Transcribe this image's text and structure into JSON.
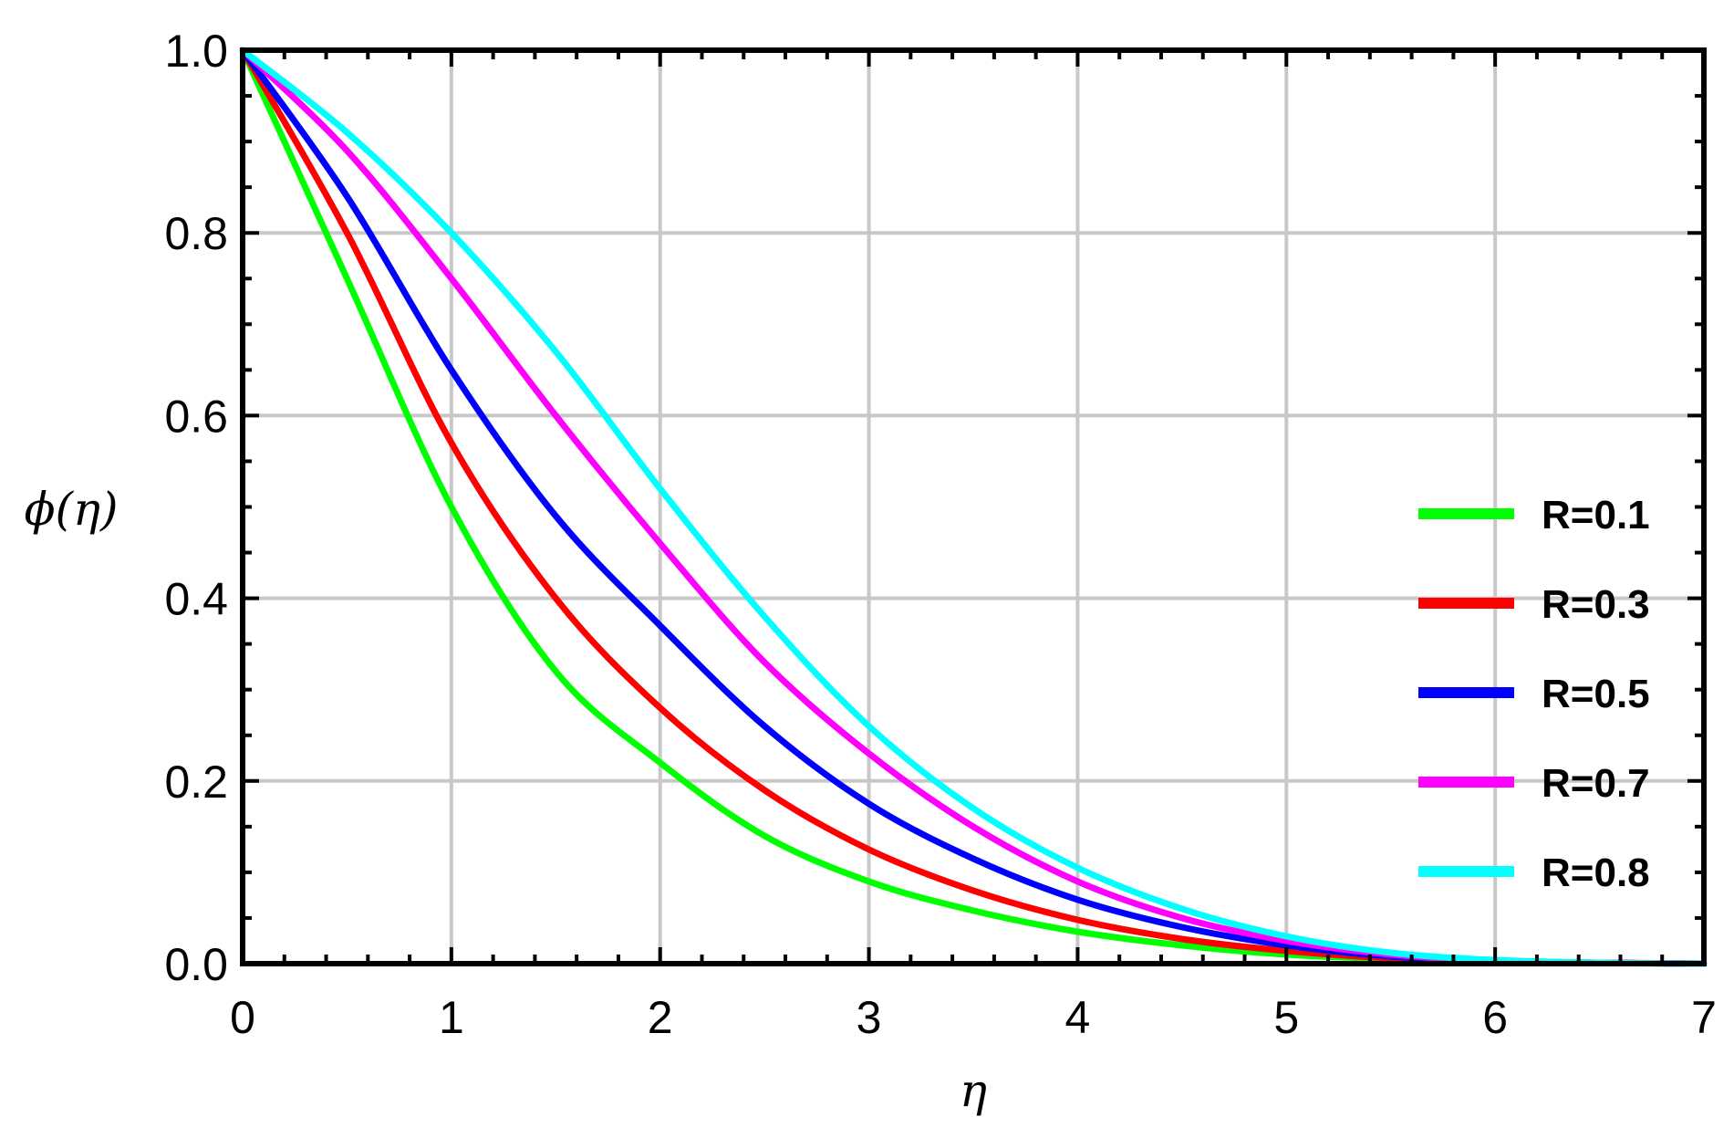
{
  "chart_data": {
    "type": "line",
    "title": "",
    "xlabel": "η",
    "ylabel": "ϕ(η)",
    "xlim": [
      0,
      7
    ],
    "ylim": [
      0,
      1
    ],
    "xticks": [
      0,
      1,
      2,
      3,
      4,
      5,
      6,
      7
    ],
    "xtick_labels": [
      "0",
      "1",
      "2",
      "3",
      "4",
      "5",
      "6",
      "7"
    ],
    "yticks": [
      0,
      0.2,
      0.4,
      0.6,
      0.8,
      1.0
    ],
    "ytick_labels": [
      "0.0",
      "0.2",
      "0.4",
      "0.6",
      "0.8",
      "1.0"
    ],
    "grid": true,
    "legend_position": "right",
    "x": [
      0,
      0.5,
      1,
      1.5,
      2,
      2.5,
      3,
      3.5,
      4,
      4.5,
      5,
      5.5,
      6,
      6.5,
      7
    ],
    "series": [
      {
        "name": "R=0.1",
        "color": "#00ff00",
        "values": [
          1.0,
          0.75,
          0.5,
          0.32,
          0.22,
          0.14,
          0.09,
          0.058,
          0.035,
          0.02,
          0.01,
          0.005,
          0.002,
          0.001,
          0.0
        ]
      },
      {
        "name": "R=0.3",
        "color": "#ff0000",
        "values": [
          1.0,
          0.8,
          0.57,
          0.4,
          0.28,
          0.19,
          0.125,
          0.08,
          0.048,
          0.027,
          0.014,
          0.006,
          0.002,
          0.001,
          0.0
        ]
      },
      {
        "name": "R=0.5",
        "color": "#0000ff",
        "values": [
          1.0,
          0.84,
          0.65,
          0.49,
          0.37,
          0.26,
          0.175,
          0.115,
          0.07,
          0.04,
          0.02,
          0.008,
          0.003,
          0.001,
          0.0
        ]
      },
      {
        "name": "R=0.7",
        "color": "#ff00ff",
        "values": [
          1.0,
          0.89,
          0.75,
          0.6,
          0.46,
          0.33,
          0.23,
          0.15,
          0.09,
          0.05,
          0.025,
          0.01,
          0.003,
          0.001,
          0.0
        ]
      },
      {
        "name": "R=0.8",
        "color": "#00ffff",
        "values": [
          1.0,
          0.91,
          0.8,
          0.67,
          0.52,
          0.38,
          0.26,
          0.17,
          0.105,
          0.06,
          0.03,
          0.012,
          0.004,
          0.001,
          0.0
        ]
      }
    ]
  }
}
